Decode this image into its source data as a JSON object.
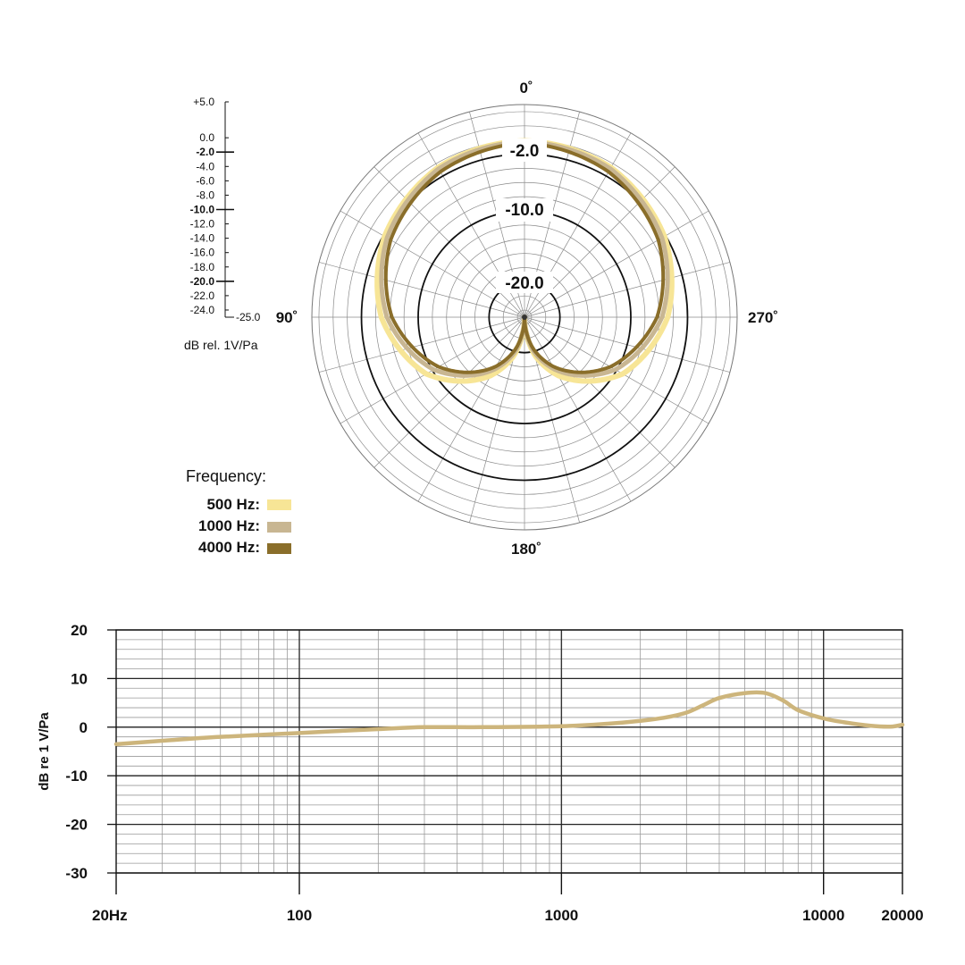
{
  "polar": {
    "angles": [
      {
        "key": "0",
        "label": "0˚"
      },
      {
        "key": "90",
        "label": "90˚"
      },
      {
        "key": "180",
        "label": "180˚"
      },
      {
        "key": "270",
        "label": "270˚"
      }
    ],
    "ring_labels": [
      "-2.0",
      "-10.0",
      "-20.0"
    ],
    "scale": {
      "ticks": [
        {
          "v": 5,
          "label": "+5.0",
          "bold": false
        },
        {
          "v": 0,
          "label": "0.0",
          "bold": false
        },
        {
          "v": -2,
          "label": "-2.0",
          "bold": true
        },
        {
          "v": -4,
          "label": "-4.0",
          "bold": false
        },
        {
          "v": -6,
          "label": "-6.0",
          "bold": false
        },
        {
          "v": -8,
          "label": "-8.0",
          "bold": false
        },
        {
          "v": -10,
          "label": "-10.0",
          "bold": true
        },
        {
          "v": -12,
          "label": "-12.0",
          "bold": false
        },
        {
          "v": -14,
          "label": "-14.0",
          "bold": false
        },
        {
          "v": -16,
          "label": "-16.0",
          "bold": false
        },
        {
          "v": -18,
          "label": "-18.0",
          "bold": false
        },
        {
          "v": -20,
          "label": "-20.0",
          "bold": true
        },
        {
          "v": -22,
          "label": "-22.0",
          "bold": false
        },
        {
          "v": -24,
          "label": "-24.0",
          "bold": false
        }
      ],
      "bottom_label": "-25.0",
      "unit_label": "dB rel. 1V/Pa"
    },
    "legend": {
      "title": "Frequency:",
      "items": [
        {
          "label": "500 Hz:",
          "color": "#f7e596"
        },
        {
          "label": "1000 Hz:",
          "color": "#c8b692"
        },
        {
          "label": "4000 Hz:",
          "color": "#8a6e2a"
        }
      ]
    }
  },
  "chart_data": [
    {
      "type": "line",
      "coordinate_system": "polar",
      "r_range_db": [
        -25,
        5
      ],
      "angle_unit": "degrees",
      "series": [
        {
          "name": "500 Hz",
          "color": "#f7e596",
          "points": [
            [
              0,
              -0.1
            ],
            [
              30,
              -0.6
            ],
            [
              60,
              -2.2
            ],
            [
              90,
              -4.8
            ],
            [
              120,
              -9
            ],
            [
              150,
              -15.5
            ],
            [
              165,
              -19.5
            ],
            [
              180,
              -25
            ],
            [
              195,
              -19.5
            ],
            [
              210,
              -15.5
            ],
            [
              240,
              -9
            ],
            [
              270,
              -4.8
            ],
            [
              300,
              -2.2
            ],
            [
              330,
              -0.6
            ],
            [
              360,
              -0.1
            ]
          ]
        },
        {
          "name": "1000 Hz",
          "color": "#c8b692",
          "points": [
            [
              0,
              -0.2
            ],
            [
              30,
              -0.8
            ],
            [
              60,
              -2.6
            ],
            [
              90,
              -5.6
            ],
            [
              120,
              -10.2
            ],
            [
              150,
              -16.5
            ],
            [
              165,
              -20
            ],
            [
              180,
              -25
            ],
            [
              195,
              -20
            ],
            [
              210,
              -16.5
            ],
            [
              240,
              -10.2
            ],
            [
              270,
              -5.6
            ],
            [
              300,
              -2.6
            ],
            [
              330,
              -0.8
            ],
            [
              360,
              -0.2
            ]
          ]
        },
        {
          "name": "4000 Hz",
          "color": "#8a6e2a",
          "points": [
            [
              0,
              -0.4
            ],
            [
              30,
              -1.3
            ],
            [
              60,
              -3.2
            ],
            [
              90,
              -6.3
            ],
            [
              120,
              -11
            ],
            [
              150,
              -17
            ],
            [
              165,
              -20.5
            ],
            [
              180,
              -25
            ],
            [
              195,
              -20.5
            ],
            [
              210,
              -17
            ],
            [
              240,
              -11
            ],
            [
              270,
              -6.3
            ],
            [
              300,
              -3.2
            ],
            [
              330,
              -1.3
            ],
            [
              360,
              -0.4
            ]
          ]
        }
      ]
    },
    {
      "type": "line",
      "x_scale": "log",
      "xlim": [
        20,
        20000
      ],
      "ylim": [
        -30,
        20
      ],
      "xlabel": "",
      "ylabel": "dB re 1 V/Pa",
      "x_ticks": [
        {
          "v": 20,
          "label": "20Hz"
        },
        {
          "v": 100,
          "label": "100"
        },
        {
          "v": 1000,
          "label": "1000"
        },
        {
          "v": 10000,
          "label": "10000"
        },
        {
          "v": 20000,
          "label": "20000"
        }
      ],
      "y_ticks": [
        20,
        10,
        0,
        -10,
        -20,
        -30
      ],
      "y_tick_labels": [
        "20",
        "10",
        "0",
        "-10",
        "-20",
        "-30"
      ],
      "grid": true,
      "series": [
        {
          "color": "#cdb57c",
          "x": [
            20,
            30,
            50,
            100,
            200,
            300,
            500,
            1000,
            1500,
            2000,
            2500,
            3000,
            3500,
            4000,
            5000,
            6000,
            7000,
            8000,
            10000,
            12000,
            15000,
            18000,
            20000
          ],
          "y": [
            -3.5,
            -2.8,
            -2.0,
            -1.2,
            -0.4,
            0,
            0,
            0.2,
            0.7,
            1.3,
            2.0,
            3.0,
            4.6,
            6.0,
            7.0,
            7.0,
            5.5,
            3.5,
            1.8,
            1.0,
            0.3,
            0.1,
            0.5
          ]
        }
      ]
    }
  ]
}
